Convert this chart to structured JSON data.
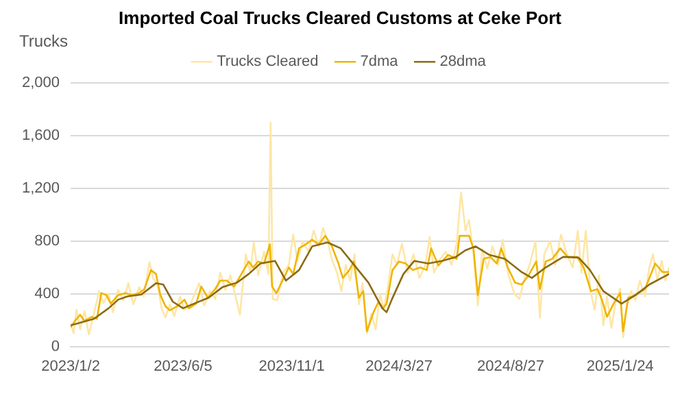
{
  "chart_data": {
    "type": "line",
    "title": "Imported Coal Trucks Cleared Customs at Ceke Port",
    "ylabel": "Trucks",
    "xlim": [
      "2023-01-02",
      "2025-04-01"
    ],
    "ylim": [
      0,
      2000
    ],
    "yticks": [
      0,
      400,
      800,
      {
        "value": 1200,
        "label": "1,200"
      },
      {
        "value": 1600,
        "label": "1,600"
      },
      {
        "value": 2000,
        "label": "2,000"
      }
    ],
    "xticks": [
      {
        "value": "2023-01-02",
        "label": "2023/1/2"
      },
      {
        "value": "2023-06-05",
        "label": "2023/6/5"
      },
      {
        "value": "2023-11-01",
        "label": "2023/11/1"
      },
      {
        "value": "2024-03-27",
        "label": "2024/3/27"
      },
      {
        "value": "2024-08-27",
        "label": "2024/8/27"
      },
      {
        "value": "2025-01-24",
        "label": "2025/1/24"
      }
    ],
    "grid": "y",
    "legend": "top",
    "marker": "none",
    "line_style": "solid",
    "series": [
      {
        "name": "Trucks Cleared",
        "color": "#fde6a6",
        "x": [
          "2023-01-02",
          "2023-01-06",
          "2023-01-10",
          "2023-01-15",
          "2023-01-21",
          "2023-01-27",
          "2023-02-03",
          "2023-02-10",
          "2023-02-16",
          "2023-02-23",
          "2023-03-01",
          "2023-03-08",
          "2023-03-15",
          "2023-03-22",
          "2023-03-29",
          "2023-04-06",
          "2023-04-12",
          "2023-04-20",
          "2023-04-25",
          "2023-05-01",
          "2023-05-07",
          "2023-05-12",
          "2023-05-18",
          "2023-05-24",
          "2023-06-01",
          "2023-06-07",
          "2023-06-14",
          "2023-06-20",
          "2023-06-27",
          "2023-07-04",
          "2023-07-12",
          "2023-07-19",
          "2023-07-26",
          "2023-08-02",
          "2023-08-09",
          "2023-08-16",
          "2023-08-22",
          "2023-08-30",
          "2023-09-05",
          "2023-09-10",
          "2023-09-16",
          "2023-09-24",
          "2023-09-30",
          "2023-10-03",
          "2023-10-06",
          "2023-10-12",
          "2023-10-20",
          "2023-10-28",
          "2023-11-03",
          "2023-11-09",
          "2023-11-16",
          "2023-11-24",
          "2023-12-01",
          "2023-12-08",
          "2023-12-14",
          "2023-12-20",
          "2023-12-26",
          "2024-01-02",
          "2024-01-08",
          "2024-01-14",
          "2024-01-20",
          "2024-01-26",
          "2024-02-01",
          "2024-02-06",
          "2024-02-12",
          "2024-02-18",
          "2024-02-24",
          "2024-03-01",
          "2024-03-06",
          "2024-03-12",
          "2024-03-18",
          "2024-03-24",
          "2024-03-31",
          "2024-04-08",
          "2024-04-16",
          "2024-04-24",
          "2024-05-02",
          "2024-05-08",
          "2024-05-14",
          "2024-05-22",
          "2024-05-30",
          "2024-06-07",
          "2024-06-14",
          "2024-06-20",
          "2024-06-26",
          "2024-07-01",
          "2024-07-07",
          "2024-07-13",
          "2024-07-19",
          "2024-07-26",
          "2024-08-02",
          "2024-08-10",
          "2024-08-16",
          "2024-08-24",
          "2024-09-01",
          "2024-09-08",
          "2024-09-15",
          "2024-09-22",
          "2024-09-30",
          "2024-10-06",
          "2024-10-12",
          "2024-10-20",
          "2024-10-27",
          "2024-11-04",
          "2024-11-12",
          "2024-11-20",
          "2024-11-27",
          "2024-12-02",
          "2024-12-08",
          "2024-12-14",
          "2024-12-20",
          "2024-12-26",
          "2025-01-01",
          "2025-01-06",
          "2025-01-12",
          "2025-01-18",
          "2025-01-24",
          "2025-01-28",
          "2025-02-02",
          "2025-02-08",
          "2025-02-14",
          "2025-02-20",
          "2025-02-27",
          "2025-03-05",
          "2025-03-10",
          "2025-03-16",
          "2025-03-22",
          "2025-03-27",
          "2025-04-01"
        ],
        "values": [
          180,
          100,
          280,
          130,
          270,
          90,
          250,
          420,
          330,
          400,
          260,
          430,
          350,
          480,
          320,
          450,
          380,
          640,
          520,
          470,
          280,
          220,
          320,
          230,
          380,
          280,
          300,
          390,
          480,
          310,
          420,
          360,
          560,
          430,
          540,
          380,
          240,
          700,
          560,
          790,
          540,
          720,
          550,
          1700,
          360,
          350,
          560,
          620,
          850,
          650,
          800,
          720,
          880,
          760,
          900,
          800,
          660,
          560,
          420,
          620,
          500,
          700,
          320,
          480,
          100,
          250,
          130,
          400,
          280,
          460,
          700,
          620,
          780,
          560,
          700,
          520,
          620,
          830,
          560,
          660,
          720,
          620,
          780,
          1170,
          880,
          960,
          700,
          310,
          740,
          590,
          760,
          620,
          810,
          540,
          400,
          360,
          520,
          620,
          800,
          220,
          700,
          800,
          620,
          850,
          700,
          600,
          880,
          560,
          880,
          430,
          280,
          540,
          160,
          380,
          140,
          340,
          440,
          70,
          300,
          420,
          350,
          500,
          380,
          600,
          700,
          500,
          650,
          500,
          600
        ]
      },
      {
        "name": "7dma",
        "color": "#f0b400",
        "x": [
          "2023-01-02",
          "2023-01-08",
          "2023-01-15",
          "2023-01-21",
          "2023-01-31",
          "2023-02-07",
          "2023-02-13",
          "2023-02-20",
          "2023-02-26",
          "2023-03-08",
          "2023-03-18",
          "2023-03-27",
          "2023-04-06",
          "2023-04-13",
          "2023-04-22",
          "2023-04-29",
          "2023-05-05",
          "2023-05-12",
          "2023-05-18",
          "2023-05-28",
          "2023-06-07",
          "2023-06-13",
          "2023-06-23",
          "2023-06-30",
          "2023-07-09",
          "2023-07-19",
          "2023-07-26",
          "2023-08-04",
          "2023-08-14",
          "2023-08-24",
          "2023-09-03",
          "2023-09-09",
          "2023-09-16",
          "2023-09-24",
          "2023-10-02",
          "2023-10-05",
          "2023-10-11",
          "2023-10-18",
          "2023-10-28",
          "2023-11-03",
          "2023-11-11",
          "2023-11-20",
          "2023-11-29",
          "2023-12-08",
          "2023-12-17",
          "2023-12-26",
          "2024-01-04",
          "2024-01-10",
          "2024-01-19",
          "2024-01-25",
          "2024-02-01",
          "2024-02-07",
          "2024-02-12",
          "2024-02-21",
          "2024-02-28",
          "2024-03-05",
          "2024-03-10",
          "2024-03-18",
          "2024-03-27",
          "2024-04-05",
          "2024-04-15",
          "2024-04-25",
          "2024-05-04",
          "2024-05-10",
          "2024-05-20",
          "2024-06-02",
          "2024-06-14",
          "2024-06-18",
          "2024-06-24",
          "2024-07-01",
          "2024-07-07",
          "2024-07-13",
          "2024-07-21",
          "2024-07-30",
          "2024-08-08",
          "2024-08-14",
          "2024-08-23",
          "2024-09-02",
          "2024-09-11",
          "2024-09-20",
          "2024-10-01",
          "2024-10-06",
          "2024-10-14",
          "2024-10-23",
          "2024-11-03",
          "2024-11-13",
          "2024-11-26",
          "2024-12-05",
          "2024-12-15",
          "2024-12-24",
          "2024-12-30",
          "2025-01-06",
          "2025-01-15",
          "2025-01-24",
          "2025-01-28",
          "2025-02-04",
          "2025-02-14",
          "2025-02-27",
          "2025-03-13",
          "2025-03-23",
          "2025-04-01"
        ],
        "values": [
          145,
          195,
          240,
          195,
          225,
          210,
          405,
          390,
          325,
          390,
          405,
          390,
          405,
          435,
          580,
          550,
          390,
          305,
          275,
          305,
          355,
          290,
          325,
          455,
          370,
          435,
          500,
          500,
          455,
          550,
          645,
          600,
          645,
          630,
          775,
          455,
          405,
          485,
          600,
          550,
          745,
          775,
          810,
          775,
          840,
          760,
          630,
          520,
          580,
          645,
          370,
          420,
          115,
          260,
          340,
          290,
          325,
          580,
          645,
          630,
          580,
          600,
          580,
          745,
          615,
          695,
          665,
          840,
          840,
          840,
          745,
          390,
          665,
          680,
          630,
          745,
          600,
          485,
          470,
          535,
          645,
          435,
          645,
          665,
          745,
          680,
          680,
          600,
          420,
          435,
          355,
          225,
          325,
          405,
          115,
          370,
          390,
          435,
          630,
          565,
          565
        ]
      },
      {
        "name": "28dma",
        "color": "#8c6a12",
        "x": [
          "2023-01-02",
          "2023-02-03",
          "2023-02-23",
          "2023-03-08",
          "2023-03-21",
          "2023-04-09",
          "2023-04-29",
          "2023-05-09",
          "2023-05-22",
          "2023-06-05",
          "2023-06-20",
          "2023-07-10",
          "2023-07-29",
          "2023-08-18",
          "2023-09-03",
          "2023-09-19",
          "2023-10-09",
          "2023-10-24",
          "2023-11-11",
          "2023-11-29",
          "2023-12-20",
          "2024-01-07",
          "2024-01-26",
          "2024-02-14",
          "2024-03-04",
          "2024-03-10",
          "2024-03-17",
          "2024-04-02",
          "2024-04-17",
          "2024-05-06",
          "2024-05-25",
          "2024-06-13",
          "2024-06-26",
          "2024-07-10",
          "2024-07-29",
          "2024-08-19",
          "2024-09-11",
          "2024-09-25",
          "2024-10-14",
          "2024-11-07",
          "2024-11-28",
          "2024-12-13",
          "2025-01-01",
          "2025-01-26",
          "2025-02-14",
          "2025-03-05",
          "2025-04-01"
        ],
        "values": [
          160,
          210,
          290,
          355,
          380,
          395,
          480,
          470,
          340,
          290,
          325,
          370,
          450,
          485,
          550,
          630,
          650,
          500,
          580,
          760,
          790,
          745,
          615,
          485,
          290,
          260,
          355,
          550,
          650,
          630,
          650,
          680,
          730,
          760,
          695,
          665,
          565,
          520,
          600,
          680,
          675,
          585,
          420,
          325,
          390,
          470,
          550
        ]
      }
    ]
  }
}
